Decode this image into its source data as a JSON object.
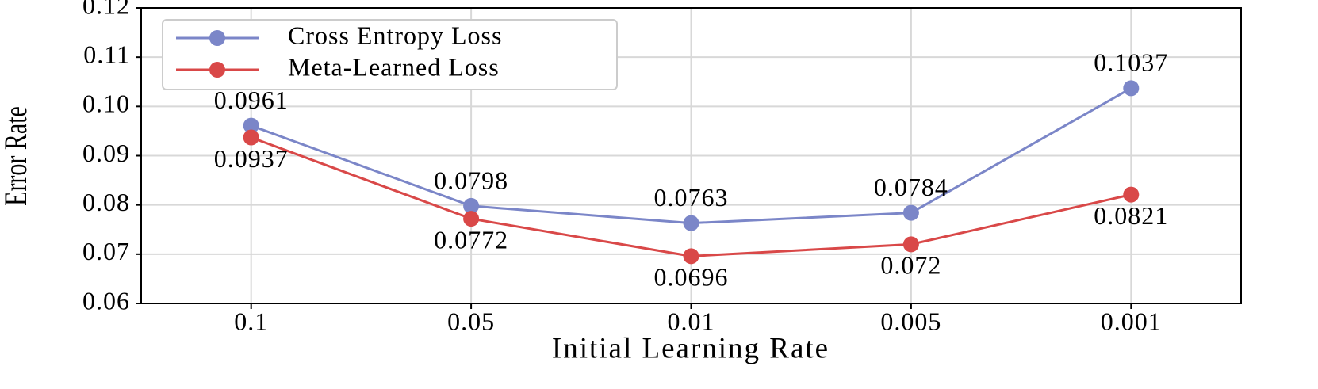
{
  "chart_data": {
    "type": "line",
    "x_label": "Initial Learning Rate",
    "y_label": "Error Rate",
    "categories": [
      "0.1",
      "0.05",
      "0.01",
      "0.005",
      "0.001"
    ],
    "series": [
      {
        "name": "Cross Entropy Loss",
        "color": "#7b86c8",
        "values": [
          0.0961,
          0.0798,
          0.0763,
          0.0784,
          0.1037
        ]
      },
      {
        "name": "Meta-Learned Loss",
        "color": "#d94848",
        "values": [
          0.0937,
          0.0772,
          0.0696,
          0.072,
          0.0821
        ]
      }
    ],
    "ylim": [
      0.06,
      0.12
    ],
    "yticks": [
      0.06,
      0.07,
      0.08,
      0.09,
      {
        "value": 0.1,
        "label": "0.10"
      },
      0.11,
      0.12
    ],
    "grid": true,
    "legend": "upper left"
  }
}
